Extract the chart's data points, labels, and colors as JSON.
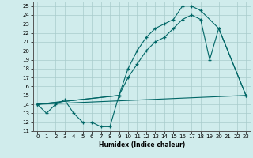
{
  "xlabel": "Humidex (Indice chaleur)",
  "bg_color": "#d0ecec",
  "grid_color": "#a8cccc",
  "line_color": "#006666",
  "xlim": [
    -0.5,
    23.5
  ],
  "ylim": [
    11,
    25.5
  ],
  "yticks": [
    11,
    12,
    13,
    14,
    15,
    16,
    17,
    18,
    19,
    20,
    21,
    22,
    23,
    24,
    25
  ],
  "xticks": [
    0,
    1,
    2,
    3,
    4,
    5,
    6,
    7,
    8,
    9,
    10,
    11,
    12,
    13,
    14,
    15,
    16,
    17,
    18,
    19,
    20,
    21,
    22,
    23
  ],
  "series": [
    {
      "x": [
        0,
        1,
        2,
        3,
        4,
        5,
        6,
        7,
        8,
        9
      ],
      "y": [
        14,
        13,
        14,
        14.5,
        13,
        12,
        12,
        11.5,
        11.5,
        15
      ],
      "marker": true
    },
    {
      "x": [
        0,
        23
      ],
      "y": [
        14,
        15
      ],
      "marker": false
    },
    {
      "x": [
        0,
        9,
        10,
        11,
        12,
        13,
        14,
        15,
        16,
        17,
        18,
        19,
        20,
        23
      ],
      "y": [
        14,
        15,
        17,
        18.5,
        20,
        21,
        21.5,
        22.5,
        23.5,
        24,
        23.5,
        19,
        22.5,
        15
      ],
      "marker": true
    },
    {
      "x": [
        0,
        9,
        10,
        11,
        12,
        13,
        14,
        15,
        16,
        17,
        18,
        20,
        23
      ],
      "y": [
        14,
        15,
        18,
        20,
        21.5,
        22.5,
        23,
        23.5,
        25,
        25,
        24.5,
        22.5,
        15
      ],
      "marker": true
    }
  ]
}
